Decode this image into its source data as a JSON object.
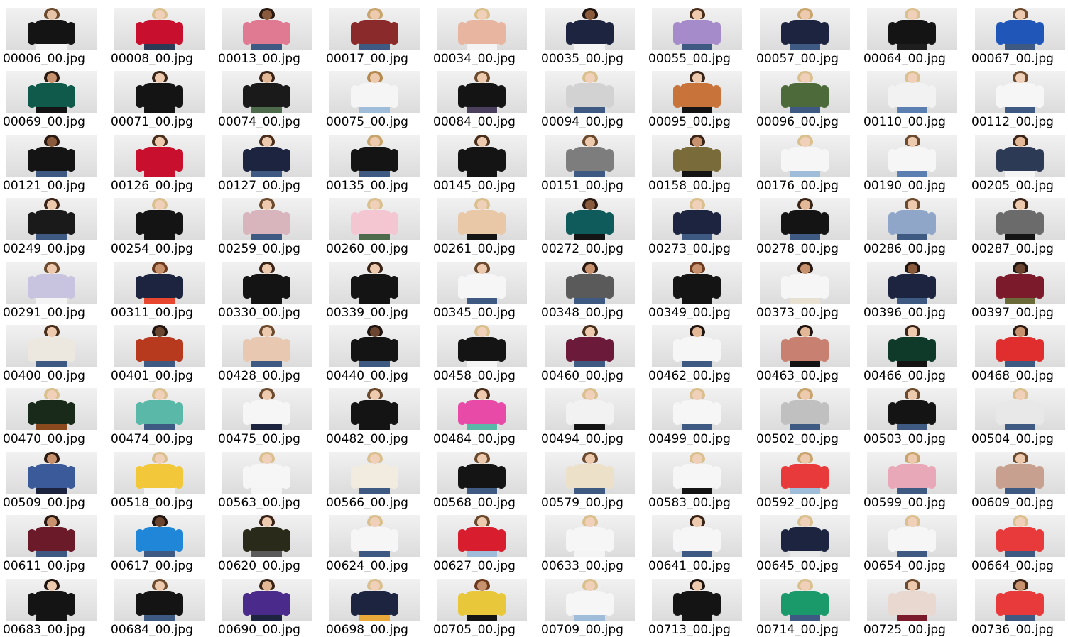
{
  "files": [
    {
      "name": "00006_00.jpg",
      "skin": "#e7c3a8",
      "hair": "#6b4a2e",
      "top": "#141414",
      "bottom": "#f4f4f4"
    },
    {
      "name": "00008_00.jpg",
      "skin": "#f0d0b8",
      "hair": "#d9c08e",
      "top": "#c8102e",
      "bottom": "#2d3a55"
    },
    {
      "name": "00013_00.jpg",
      "skin": "#8a5a3c",
      "hair": "#2b1a12",
      "top": "#e07a92",
      "bottom": "#3e5a83"
    },
    {
      "name": "00017_00.jpg",
      "skin": "#edc9ad",
      "hair": "#c9a56e",
      "top": "#8b2a2a",
      "bottom": "#3e5a83"
    },
    {
      "name": "00034_00.jpg",
      "skin": "#f0d0b8",
      "hair": "#d9c08e",
      "top": "#e8b6a0",
      "bottom": "#f4f4f4"
    },
    {
      "name": "00035_00.jpg",
      "skin": "#8a5a3c",
      "hair": "#1f1410",
      "top": "#1c2440",
      "bottom": "#f4f4f4"
    },
    {
      "name": "00055_00.jpg",
      "skin": "#edc9ad",
      "hair": "#4a2e1c",
      "top": "#a58bc9",
      "bottom": "#3e5a83"
    },
    {
      "name": "00057_00.jpg",
      "skin": "#edc9ad",
      "hair": "#c9a56e",
      "top": "#1c2440",
      "bottom": "#3e5a83"
    },
    {
      "name": "00064_00.jpg",
      "skin": "#f0d0b8",
      "hair": "#d9c08e",
      "top": "#141414",
      "bottom": "#1e1e1e"
    },
    {
      "name": "00067_00.jpg",
      "skin": "#edc9ad",
      "hair": "#6b4a2e",
      "top": "#1f56b8",
      "bottom": "#3e5a83"
    },
    {
      "name": "00069_00.jpg",
      "skin": "#c7926d",
      "hair": "#2b1a12",
      "top": "#0f5a4a",
      "bottom": "#141414"
    },
    {
      "name": "00071_00.jpg",
      "skin": "#edc9ad",
      "hair": "#3a2418",
      "top": "#141414",
      "bottom": "#141414"
    },
    {
      "name": "00074_00.jpg",
      "skin": "#e2b896",
      "hair": "#3a2418",
      "top": "#1a1a1a",
      "bottom": "#4d6b4a"
    },
    {
      "name": "00075_00.jpg",
      "skin": "#edc9ad",
      "hair": "#b58a4e",
      "top": "#f5f5f5",
      "bottom": "#9fbcd9"
    },
    {
      "name": "00084_00.jpg",
      "skin": "#edc9ad",
      "hair": "#6b4a2e",
      "top": "#141414",
      "bottom": "#4a3f5c"
    },
    {
      "name": "00094_00.jpg",
      "skin": "#f0d0b8",
      "hair": "#d9c08e",
      "top": "#d2d2d2",
      "bottom": "#3e5a83"
    },
    {
      "name": "00095_00.jpg",
      "skin": "#edc9ad",
      "hair": "#3a2418",
      "top": "#c8733a",
      "bottom": "#141414"
    },
    {
      "name": "00096_00.jpg",
      "skin": "#f0d0b8",
      "hair": "#d9c08e",
      "top": "#4d6b3a",
      "bottom": "#3e5a83"
    },
    {
      "name": "00110_00.jpg",
      "skin": "#f0d0b8",
      "hair": "#d9c08e",
      "top": "#f2f2f2",
      "bottom": "#5a7fb0"
    },
    {
      "name": "00112_00.jpg",
      "skin": "#f0d0b8",
      "hair": "#6b4a2e",
      "top": "#f6f6f6",
      "bottom": "#3e5a83"
    },
    {
      "name": "00121_00.jpg",
      "skin": "#8a5a3c",
      "hair": "#2b1a12",
      "top": "#141414",
      "bottom": "#3e5a83"
    },
    {
      "name": "00126_00.jpg",
      "skin": "#edc9ad",
      "hair": "#4a2e1c",
      "top": "#c8102e",
      "bottom": "#c8102e"
    },
    {
      "name": "00127_00.jpg",
      "skin": "#edc9ad",
      "hair": "#4a2e1c",
      "top": "#1c2440",
      "bottom": "#3e5a83"
    },
    {
      "name": "00135_00.jpg",
      "skin": "#edc9ad",
      "hair": "#c9a56e",
      "top": "#141414",
      "bottom": "#3e5a83"
    },
    {
      "name": "00145_00.jpg",
      "skin": "#edc9ad",
      "hair": "#4a2e1c",
      "top": "#141414",
      "bottom": "#141414"
    },
    {
      "name": "00151_00.jpg",
      "skin": "#edc9ad",
      "hair": "#6b4a2e",
      "top": "#7d7d7d",
      "bottom": "#3e5a83"
    },
    {
      "name": "00158_00.jpg",
      "skin": "#c7926d",
      "hair": "#3a2418",
      "top": "#7a6b3a",
      "bottom": "#141414"
    },
    {
      "name": "00176_00.jpg",
      "skin": "#f0d0b8",
      "hair": "#d9c08e",
      "top": "#f6f6f6",
      "bottom": "#9fbcd9"
    },
    {
      "name": "00190_00.jpg",
      "skin": "#edc9ad",
      "hair": "#6b4a2e",
      "top": "#f6f6f6",
      "bottom": "#5a7fb0"
    },
    {
      "name": "00205_00.jpg",
      "skin": "#e2b896",
      "hair": "#3a2418",
      "top": "#2d3a55",
      "bottom": "#f4f4f4"
    },
    {
      "name": "00249_00.jpg",
      "skin": "#edc9ad",
      "hair": "#3a2418",
      "top": "#1a1a1a",
      "bottom": "#3e5a83"
    },
    {
      "name": "00254_00.jpg",
      "skin": "#f0d0b8",
      "hair": "#d9c08e",
      "top": "#141414",
      "bottom": "#141414"
    },
    {
      "name": "00259_00.jpg",
      "skin": "#edc9ad",
      "hair": "#6b4a2e",
      "top": "#d8b4bc",
      "bottom": "#3e5a83"
    },
    {
      "name": "00260_00.jpg",
      "skin": "#f0d0b8",
      "hair": "#d9c08e",
      "top": "#f4c6d2",
      "bottom": "#4d6b4a"
    },
    {
      "name": "00261_00.jpg",
      "skin": "#f0d0b8",
      "hair": "#d9c08e",
      "top": "#e9c8a8",
      "bottom": "#141414"
    },
    {
      "name": "00272_00.jpg",
      "skin": "#8a5a3c",
      "hair": "#2b1a12",
      "top": "#0f5a5a",
      "bottom": "#141414"
    },
    {
      "name": "00273_00.jpg",
      "skin": "#f0d0b8",
      "hair": "#d9c08e",
      "top": "#1c2440",
      "bottom": "#3e5a83"
    },
    {
      "name": "00278_00.jpg",
      "skin": "#e2b896",
      "hair": "#3a2418",
      "top": "#141414",
      "bottom": "#3e5a83"
    },
    {
      "name": "00286_00.jpg",
      "skin": "#edc9ad",
      "hair": "#6b4a2e",
      "top": "#8fa6c8",
      "bottom": "#3e5a83"
    },
    {
      "name": "00287_00.jpg",
      "skin": "#edc9ad",
      "hair": "#3a2418",
      "top": "#6b6b6b",
      "bottom": "#141414"
    },
    {
      "name": "00291_00.jpg",
      "skin": "#edc9ad",
      "hair": "#6b4a2e",
      "top": "#c8c4e0",
      "bottom": "#f4f4f4"
    },
    {
      "name": "00311_00.jpg",
      "skin": "#c7926d",
      "hair": "#6b3a1e",
      "top": "#1c2440",
      "bottom": "#e8462e"
    },
    {
      "name": "00330_00.jpg",
      "skin": "#edc9ad",
      "hair": "#3a2418",
      "top": "#141414",
      "bottom": "#141414"
    },
    {
      "name": "00339_00.jpg",
      "skin": "#edc9ad",
      "hair": "#3a2418",
      "top": "#141414",
      "bottom": "#141414"
    },
    {
      "name": "00345_00.jpg",
      "skin": "#edc9ad",
      "hair": "#6b4a2e",
      "top": "#f6f6f6",
      "bottom": "#3e5a83"
    },
    {
      "name": "00348_00.jpg",
      "skin": "#c7926d",
      "hair": "#2b1a12",
      "top": "#5a5a5a",
      "bottom": "#3e5a83"
    },
    {
      "name": "00349_00.jpg",
      "skin": "#c7926d",
      "hair": "#6b3a1e",
      "top": "#141414",
      "bottom": "#141414"
    },
    {
      "name": "00373_00.jpg",
      "skin": "#c7926d",
      "hair": "#2b1a12",
      "top": "#f6f6f6",
      "bottom": "#e8e0d0"
    },
    {
      "name": "00396_00.jpg",
      "skin": "#8a5a3c",
      "hair": "#1f1410",
      "top": "#1c2440",
      "bottom": "#3e5a83"
    },
    {
      "name": "00397_00.jpg",
      "skin": "#6b4530",
      "hair": "#1f1410",
      "top": "#7a1a2a",
      "bottom": "#6b6b3a"
    },
    {
      "name": "00400_00.jpg",
      "skin": "#edc9ad",
      "hair": "#4a2e1c",
      "top": "#ece8e0",
      "bottom": "#3e5a83"
    },
    {
      "name": "00401_00.jpg",
      "skin": "#6b4530",
      "hair": "#1f1410",
      "top": "#b83a1e",
      "bottom": "#3e5a83"
    },
    {
      "name": "00428_00.jpg",
      "skin": "#edc9ad",
      "hair": "#6b4a2e",
      "top": "#e8c8b0",
      "bottom": "#3e5a83"
    },
    {
      "name": "00440_00.jpg",
      "skin": "#6b4530",
      "hair": "#1f1410",
      "top": "#141414",
      "bottom": "#3e5a83"
    },
    {
      "name": "00458_00.jpg",
      "skin": "#f0d0b8",
      "hair": "#d9c08e",
      "top": "#141414",
      "bottom": "#f4f4f4"
    },
    {
      "name": "00460_00.jpg",
      "skin": "#edc9ad",
      "hair": "#4a2e1c",
      "top": "#6b1a3a",
      "bottom": "#3e5a83"
    },
    {
      "name": "00462_00.jpg",
      "skin": "#e2b896",
      "hair": "#1f1410",
      "top": "#f6f6f6",
      "bottom": "#3e5a83"
    },
    {
      "name": "00463_00.jpg",
      "skin": "#e2b896",
      "hair": "#1f1410",
      "top": "#c88070",
      "bottom": "#141414"
    },
    {
      "name": "00466_00.jpg",
      "skin": "#edc9ad",
      "hair": "#3a2418",
      "top": "#0f3a2a",
      "bottom": "#141414"
    },
    {
      "name": "00468_00.jpg",
      "skin": "#c7926d",
      "hair": "#2b1a12",
      "top": "#e02e2e",
      "bottom": "#3e5a83"
    },
    {
      "name": "00470_00.jpg",
      "skin": "#f0d0b8",
      "hair": "#d9c08e",
      "top": "#1a2a1a",
      "bottom": "#8a4a1e"
    },
    {
      "name": "00474_00.jpg",
      "skin": "#f0d0b8",
      "hair": "#d9c08e",
      "top": "#5ab8a8",
      "bottom": "#3e5a83"
    },
    {
      "name": "00475_00.jpg",
      "skin": "#edc9ad",
      "hair": "#6b4a2e",
      "top": "#f6f6f6",
      "bottom": "#1c2440"
    },
    {
      "name": "00482_00.jpg",
      "skin": "#edc9ad",
      "hair": "#6b4a2e",
      "top": "#141414",
      "bottom": "#141414"
    },
    {
      "name": "00484_00.jpg",
      "skin": "#edc9ad",
      "hair": "#4a2e1c",
      "top": "#e84aa8",
      "bottom": "#5ab8a8"
    },
    {
      "name": "00494_00.jpg",
      "skin": "#f0d0b8",
      "hair": "#d9c08e",
      "top": "#f2f2f2",
      "bottom": "#141414"
    },
    {
      "name": "00499_00.jpg",
      "skin": "#f0d0b8",
      "hair": "#d9c08e",
      "top": "#f6f6f6",
      "bottom": "#3e5a83"
    },
    {
      "name": "00502_00.jpg",
      "skin": "#edc9ad",
      "hair": "#c9a56e",
      "top": "#c0c0c0",
      "bottom": "#3e5a83"
    },
    {
      "name": "00503_00.jpg",
      "skin": "#edc9ad",
      "hair": "#6b4a2e",
      "top": "#141414",
      "bottom": "#3e5a83"
    },
    {
      "name": "00504_00.jpg",
      "skin": "#f0d0b8",
      "hair": "#d9c08e",
      "top": "#e8e8e8",
      "bottom": "#3e5a83"
    },
    {
      "name": "00509_00.jpg",
      "skin": "#c7926d",
      "hair": "#2b1a12",
      "top": "#3a5a9a",
      "bottom": "#1c2440"
    },
    {
      "name": "00518_00.jpg",
      "skin": "#f0d0b8",
      "hair": "#d9c08e",
      "top": "#f2c83a",
      "bottom": "#f4f4f4"
    },
    {
      "name": "00563_00.jpg",
      "skin": "#f0d0b8",
      "hair": "#d9c08e",
      "top": "#f6f6f6",
      "bottom": "#f4f4f4"
    },
    {
      "name": "00566_00.jpg",
      "skin": "#f0d0b8",
      "hair": "#d9c08e",
      "top": "#f2ece0",
      "bottom": "#3e5a83"
    },
    {
      "name": "00568_00.jpg",
      "skin": "#edc9ad",
      "hair": "#6b4a2e",
      "top": "#141414",
      "bottom": "#3e5a83"
    },
    {
      "name": "00579_00.jpg",
      "skin": "#edc9ad",
      "hair": "#6b4a2e",
      "top": "#ece0c8",
      "bottom": "#3e5a83"
    },
    {
      "name": "00583_00.jpg",
      "skin": "#f0d0b8",
      "hair": "#d9c08e",
      "top": "#f6f6f6",
      "bottom": "#141414"
    },
    {
      "name": "00592_00.jpg",
      "skin": "#edc9ad",
      "hair": "#c9a56e",
      "top": "#e83a3a",
      "bottom": "#9fbcd9"
    },
    {
      "name": "00599_00.jpg",
      "skin": "#edc9ad",
      "hair": "#c9a56e",
      "top": "#e8a8b8",
      "bottom": "#3e5a83"
    },
    {
      "name": "00609_00.jpg",
      "skin": "#edc9ad",
      "hair": "#6b4a2e",
      "top": "#c8a090",
      "bottom": "#3e5a83"
    },
    {
      "name": "00611_00.jpg",
      "skin": "#c7926d",
      "hair": "#2b1a12",
      "top": "#6b1a2a",
      "bottom": "#3e5a83"
    },
    {
      "name": "00617_00.jpg",
      "skin": "#6b4530",
      "hair": "#1f1410",
      "top": "#1f86d8",
      "bottom": "#3e5a83"
    },
    {
      "name": "00620_00.jpg",
      "skin": "#edc9ad",
      "hair": "#3a2418",
      "top": "#2a2a1a",
      "bottom": "#5a5a5a"
    },
    {
      "name": "00624_00.jpg",
      "skin": "#f0d0b8",
      "hair": "#d9c08e",
      "top": "#f6f6f6",
      "bottom": "#3e5a83"
    },
    {
      "name": "00627_00.jpg",
      "skin": "#edc9ad",
      "hair": "#6b4a2e",
      "top": "#d81e2e",
      "bottom": "#9fbcd9"
    },
    {
      "name": "00633_00.jpg",
      "skin": "#f0d0b8",
      "hair": "#d9c08e",
      "top": "#f6f6f6",
      "bottom": "#f4f4f4"
    },
    {
      "name": "00641_00.jpg",
      "skin": "#edc9ad",
      "hair": "#3a2418",
      "top": "#f6f6f6",
      "bottom": "#3e5a83"
    },
    {
      "name": "00645_00.jpg",
      "skin": "#f0d0b8",
      "hair": "#d9c08e",
      "top": "#1c2440",
      "bottom": "#e8e8e8"
    },
    {
      "name": "00654_00.jpg",
      "skin": "#f0d0b8",
      "hair": "#d9c08e",
      "top": "#f6f6f6",
      "bottom": "#3e5a83"
    },
    {
      "name": "00664_00.jpg",
      "skin": "#f0d0b8",
      "hair": "#d9c08e",
      "top": "#e83a3a",
      "bottom": "#3e5a83"
    },
    {
      "name": "00683_00.jpg",
      "skin": "#edc9ad",
      "hair": "#1f1410",
      "top": "#141414",
      "bottom": "#141414"
    },
    {
      "name": "00684_00.jpg",
      "skin": "#edc9ad",
      "hair": "#6b4a2e",
      "top": "#141414",
      "bottom": "#3e5a83"
    },
    {
      "name": "00690_00.jpg",
      "skin": "#e2b896",
      "hair": "#3a2418",
      "top": "#4a2a8a",
      "bottom": "#1c2440"
    },
    {
      "name": "00698_00.jpg",
      "skin": "#f0d0b8",
      "hair": "#d9c08e",
      "top": "#1c2440",
      "bottom": "#e8a83a"
    },
    {
      "name": "00705_00.jpg",
      "skin": "#c7926d",
      "hair": "#6b3a1e",
      "top": "#e8c83a",
      "bottom": "#141414"
    },
    {
      "name": "00709_00.jpg",
      "skin": "#f0d0b8",
      "hair": "#d9c08e",
      "top": "#f6f6f6",
      "bottom": "#9fbcd9"
    },
    {
      "name": "00713_00.jpg",
      "skin": "#edc9ad",
      "hair": "#1f1410",
      "top": "#141414",
      "bottom": "#141414"
    },
    {
      "name": "00714_00.jpg",
      "skin": "#f0d0b8",
      "hair": "#d9c08e",
      "top": "#1a9a6a",
      "bottom": "#3e5a83"
    },
    {
      "name": "00725_00.jpg",
      "skin": "#edc9ad",
      "hair": "#6b4a2e",
      "top": "#e8d8d0",
      "bottom": "#7a1a2a"
    },
    {
      "name": "00736_00.jpg",
      "skin": "#c7926d",
      "hair": "#3a2418",
      "top": "#e83a3a",
      "bottom": "#3e5a83"
    }
  ]
}
